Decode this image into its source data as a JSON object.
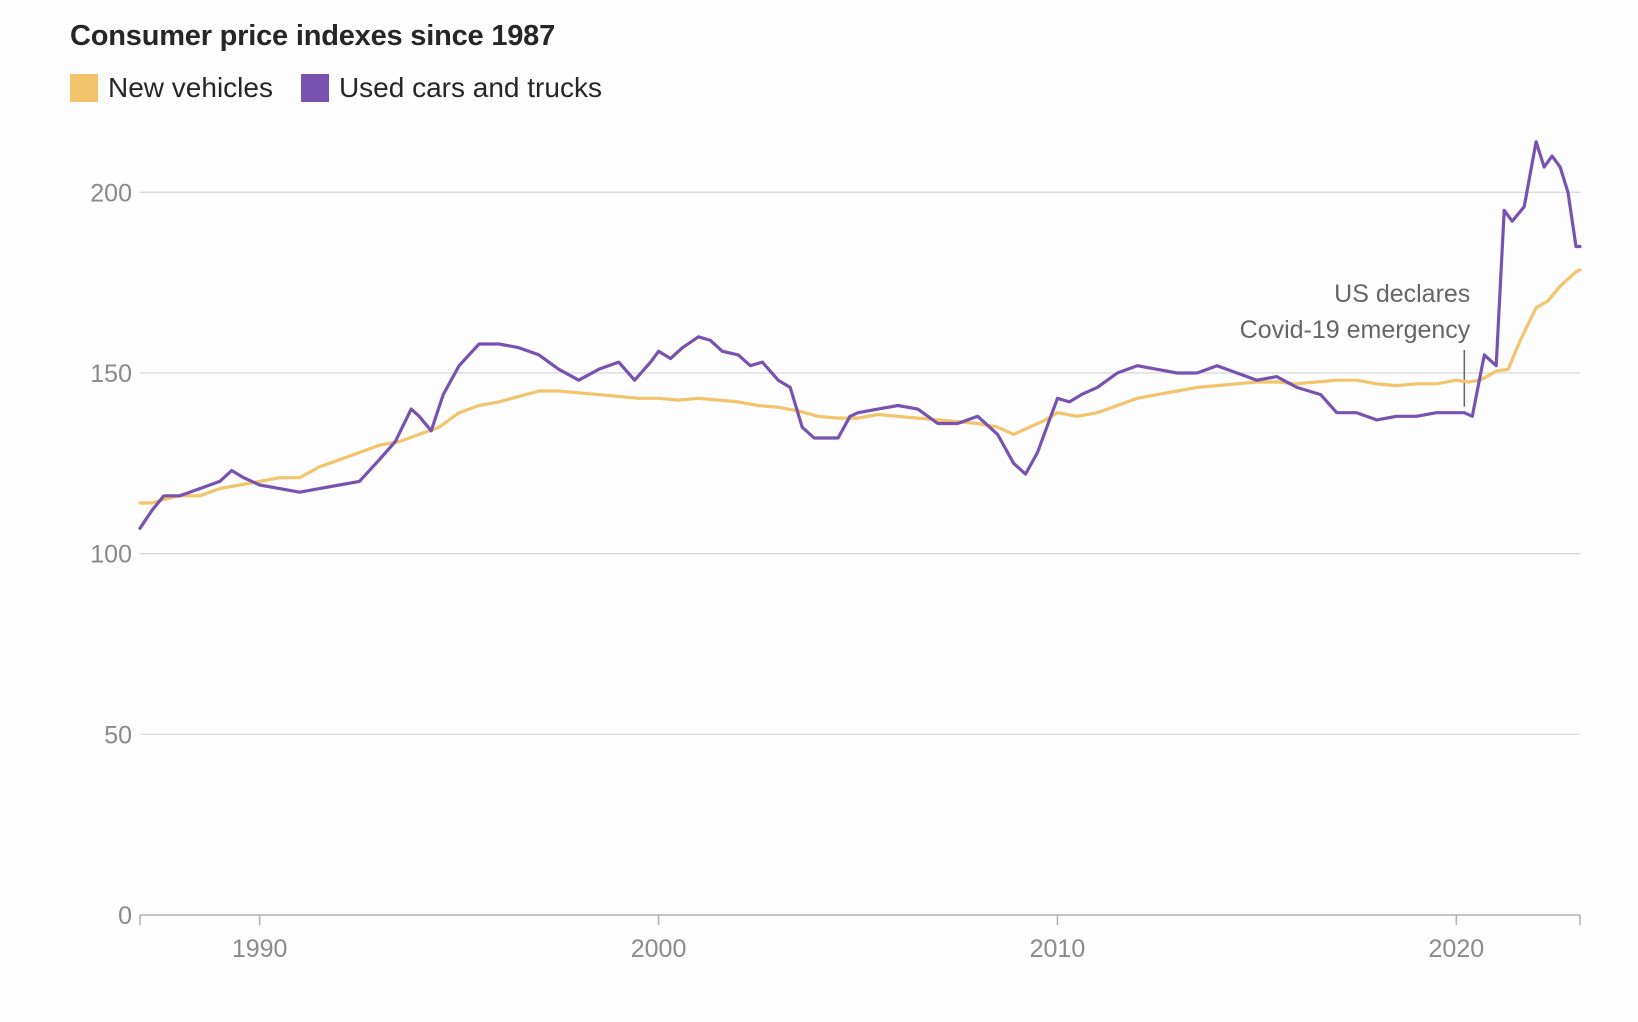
{
  "chart_data": {
    "type": "line",
    "title": "Consumer price indexes since 1987",
    "xlabel": "",
    "ylabel": "",
    "xlim": [
      1987.0,
      2023.1
    ],
    "ylim": [
      0,
      220
    ],
    "y_ticks": [
      0,
      50,
      100,
      150,
      200
    ],
    "x_ticks": [
      1990,
      2000,
      2010,
      2020
    ],
    "y_tick_labels": [
      "0",
      "50",
      "100",
      "150",
      "200"
    ],
    "x_tick_labels": [
      "1990",
      "2000",
      "2010",
      "2020"
    ],
    "grid": true,
    "legend_position": "top-left",
    "annotation": {
      "x": 2020.2,
      "y": 139,
      "line1": "US declares",
      "line2": "Covid-19 emergency"
    },
    "series": [
      {
        "name": "New vehicles",
        "color": "#f2c46b",
        "x": [
          1987.0,
          1987.3,
          1987.6,
          1988.0,
          1988.5,
          1989.0,
          1989.5,
          1990.0,
          1990.5,
          1991.0,
          1991.5,
          1992.0,
          1992.5,
          1993.0,
          1993.5,
          1994.0,
          1994.5,
          1995.0,
          1995.5,
          1996.0,
          1996.5,
          1997.0,
          1997.5,
          1998.0,
          1998.5,
          1999.0,
          1999.5,
          2000.0,
          2000.5,
          2001.0,
          2001.5,
          2002.0,
          2002.5,
          2003.0,
          2003.5,
          2004.0,
          2004.5,
          2005.0,
          2005.5,
          2006.0,
          2006.5,
          2007.0,
          2007.5,
          2008.0,
          2008.5,
          2008.9,
          2009.3,
          2009.7,
          2010.0,
          2010.5,
          2011.0,
          2011.5,
          2012.0,
          2012.5,
          2013.0,
          2013.5,
          2014.0,
          2014.5,
          2015.0,
          2015.5,
          2016.0,
          2016.5,
          2017.0,
          2017.5,
          2018.0,
          2018.5,
          2019.0,
          2019.5,
          2020.0,
          2020.3,
          2020.6,
          2021.0,
          2021.3,
          2021.6,
          2022.0,
          2022.3,
          2022.6,
          2023.0,
          2023.1
        ],
        "values": [
          114,
          114,
          115,
          116,
          116,
          118,
          119,
          120,
          121,
          121,
          124,
          126,
          128,
          130,
          131,
          133,
          135,
          139,
          141,
          142,
          143.5,
          145,
          145,
          144.5,
          144,
          143.5,
          143,
          143,
          142.5,
          143,
          142.5,
          142,
          141,
          140.5,
          139.5,
          138,
          137.5,
          137.5,
          138.5,
          138,
          137.5,
          137,
          136.5,
          136,
          135,
          133,
          135,
          137,
          139,
          138,
          139,
          141,
          143,
          144,
          145,
          146,
          146.5,
          147,
          147.5,
          147.5,
          147,
          147.5,
          148,
          148,
          147,
          146.5,
          147,
          147,
          148,
          147.5,
          148,
          150.5,
          151,
          159,
          168,
          170,
          174,
          178,
          178.5
        ]
      },
      {
        "name": "Used cars and trucks",
        "color": "#7852b0",
        "x": [
          1987.0,
          1987.3,
          1987.6,
          1988.0,
          1988.5,
          1989.0,
          1989.3,
          1989.6,
          1990.0,
          1990.5,
          1991.0,
          1991.5,
          1992.0,
          1992.5,
          1993.0,
          1993.4,
          1993.8,
          1994.0,
          1994.3,
          1994.6,
          1995.0,
          1995.5,
          1996.0,
          1996.5,
          1997.0,
          1997.5,
          1998.0,
          1998.5,
          1999.0,
          1999.4,
          1999.8,
          2000.0,
          2000.3,
          2000.6,
          2001.0,
          2001.3,
          2001.6,
          2002.0,
          2002.3,
          2002.6,
          2003.0,
          2003.3,
          2003.6,
          2003.9,
          2004.2,
          2004.5,
          2004.8,
          2005.0,
          2005.5,
          2006.0,
          2006.5,
          2007.0,
          2007.5,
          2008.0,
          2008.5,
          2008.9,
          2009.2,
          2009.5,
          2009.8,
          2010.0,
          2010.3,
          2010.6,
          2011.0,
          2011.5,
          2012.0,
          2012.5,
          2013.0,
          2013.5,
          2014.0,
          2014.5,
          2015.0,
          2015.5,
          2016.0,
          2016.3,
          2016.6,
          2017.0,
          2017.5,
          2018.0,
          2018.5,
          2019.0,
          2019.5,
          2020.0,
          2020.2,
          2020.4,
          2020.7,
          2021.0,
          2021.2,
          2021.4,
          2021.7,
          2022.0,
          2022.2,
          2022.4,
          2022.6,
          2022.8,
          2023.0,
          2023.1
        ],
        "values": [
          107,
          112,
          116,
          116,
          118,
          120,
          123,
          121,
          119,
          118,
          117,
          118,
          119,
          120,
          126,
          131,
          140,
          138,
          134,
          144,
          152,
          158,
          158,
          157,
          155,
          151,
          148,
          151,
          153,
          148,
          153,
          156,
          154,
          157,
          160,
          159,
          156,
          155,
          152,
          153,
          148,
          146,
          135,
          132,
          132,
          132,
          138,
          139,
          140,
          141,
          140,
          136,
          136,
          138,
          133,
          125,
          122,
          128,
          137,
          143,
          142,
          144,
          146,
          150,
          152,
          151,
          150,
          150,
          152,
          150,
          148,
          149,
          146,
          145,
          144,
          139,
          139,
          137,
          138,
          138,
          139,
          139,
          139,
          138,
          155,
          152,
          195,
          192,
          196,
          214,
          207,
          210,
          207,
          200,
          185,
          185
        ]
      }
    ]
  }
}
